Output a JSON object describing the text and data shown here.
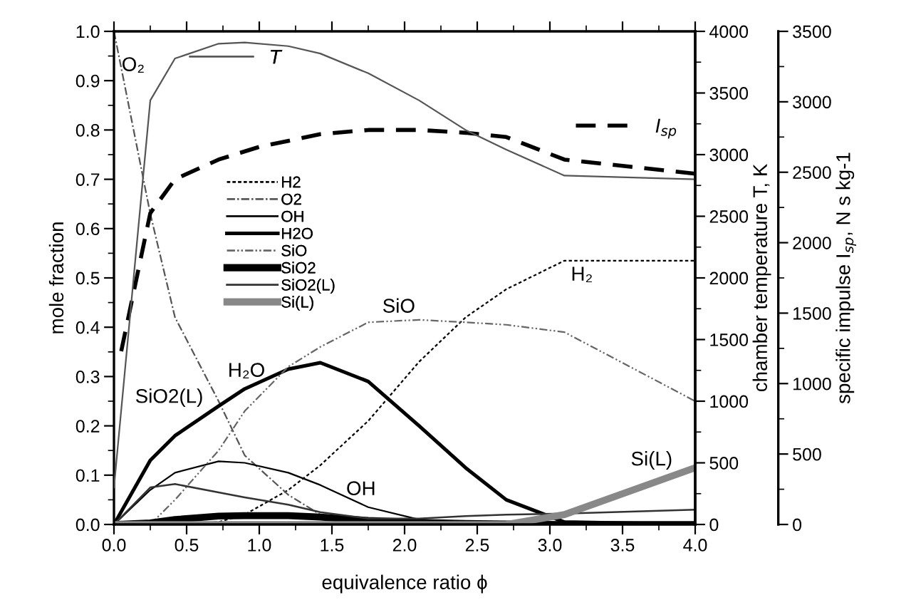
{
  "chart_data": {
    "type": "line",
    "xlabel": "equivalence ratio ϕ",
    "ylabel": "mole fraction",
    "y2label": "chamber temperature T, K",
    "y3label": "specific impulse I$_{sp}$, N s kg-1",
    "x": [
      0,
      0.25,
      0.42,
      0.72,
      0.9,
      1.2,
      1.42,
      1.75,
      2.1,
      2.42,
      2.7,
      3.1,
      4.0
    ],
    "series": [
      {
        "name": "H2",
        "color": "#000000",
        "line_style": "dotted",
        "values": [
          0,
          0,
          0,
          0.005,
          0.02,
          0.07,
          0.12,
          0.21,
          0.33,
          0.42,
          0.477,
          0.535,
          0.535
        ]
      },
      {
        "name": "O2",
        "color": "#555555",
        "line_style": "dashdot",
        "values": [
          1.0,
          0.63,
          0.42,
          0.25,
          0.14,
          0.06,
          0.02,
          0.005,
          0,
          0,
          0,
          0,
          0
        ]
      },
      {
        "name": "OH",
        "color": "#000000",
        "line_style": "solid",
        "values": [
          0,
          0.07,
          0.105,
          0.128,
          0.125,
          0.105,
          0.08,
          0.035,
          0.01,
          0.003,
          0,
          0,
          0
        ]
      },
      {
        "name": "H2O",
        "color": "#000000",
        "line_style": "solid",
        "values": [
          0,
          0.13,
          0.18,
          0.24,
          0.275,
          0.315,
          0.328,
          0.29,
          0.2,
          0.115,
          0.05,
          0.005,
          0
        ]
      },
      {
        "name": "SiO",
        "color": "#666666",
        "line_style": "dashdotdot",
        "values": [
          0,
          0,
          0.05,
          0.15,
          0.23,
          0.32,
          0.36,
          0.41,
          0.415,
          0.41,
          0.405,
          0.39,
          0.25
        ]
      },
      {
        "name": "SiO2",
        "color": "#000000",
        "line_style": "solid",
        "values": [
          0,
          0.003,
          0.01,
          0.017,
          0.018,
          0.018,
          0.015,
          0.008,
          0.004,
          0.002,
          0.001,
          0,
          0
        ]
      },
      {
        "name": "SiO2(L)",
        "color": "#333333",
        "line_style": "solid",
        "values": [
          0,
          0.075,
          0.082,
          0.065,
          0.055,
          0.04,
          0.025,
          0.012,
          0.012,
          0.017,
          0.02,
          0.022,
          0.03
        ]
      },
      {
        "name": "Si(L)",
        "color": "#888888",
        "line_style": "solid",
        "values": [
          0,
          0,
          0,
          0,
          0,
          0,
          0,
          0,
          0,
          0,
          0,
          0.02,
          0.115
        ]
      },
      {
        "name": "T",
        "color": "#555555",
        "line_style": "solid",
        "axis": "y2",
        "values": [
          300,
          3440,
          3780,
          3900,
          3910,
          3880,
          3820,
          3660,
          3440,
          3200,
          3040,
          2830,
          2800
        ]
      },
      {
        "name": "I$_{sp}$",
        "color": "#000000",
        "line_style": "dashed",
        "axis": "y3",
        "x": [
          0.05,
          0.25,
          0.42,
          0.72,
          1.0,
          1.42,
          1.75,
          2.1,
          2.42,
          2.7,
          3.1,
          4.0
        ],
        "values": [
          1230,
          2210,
          2450,
          2590,
          2680,
          2770,
          2800,
          2800,
          2780,
          2750,
          2590,
          2490
        ]
      }
    ],
    "xlim": [
      0,
      4
    ],
    "xticks": [
      {
        "value": 0,
        "label": "0.0"
      },
      {
        "value": 0.5,
        "label": "0.5"
      },
      {
        "value": 1,
        "label": "1.0"
      },
      {
        "value": 1.5,
        "label": "1.5"
      },
      {
        "value": 2,
        "label": "2.0"
      },
      {
        "value": 2.5,
        "label": "2.5"
      },
      {
        "value": 3,
        "label": "3.0"
      },
      {
        "value": 3.5,
        "label": "3.5"
      },
      {
        "value": 4,
        "label": "4.0"
      }
    ],
    "ylim": [
      0,
      1
    ],
    "yticks": [
      {
        "value": 0,
        "label": "0.0"
      },
      0.1,
      0.2,
      0.3,
      0.4,
      0.5,
      0.6,
      0.7,
      0.8,
      0.9,
      {
        "value": 1,
        "label": "1.0"
      }
    ],
    "y2lim": [
      0,
      4000
    ],
    "y2ticks": [
      0,
      500,
      1000,
      1500,
      2000,
      2500,
      3000,
      3500,
      4000
    ],
    "y3lim": [
      0,
      3500
    ],
    "y3ticks": [
      0,
      500,
      1000,
      1500,
      2000,
      2500,
      3000,
      3500
    ],
    "legend": "center left",
    "grid": false,
    "marker": "none",
    "annotations": [
      "O₂",
      "H₂O",
      "SiO2(L)",
      "SiO",
      "OH",
      "H₂",
      "Si(L)"
    ]
  }
}
